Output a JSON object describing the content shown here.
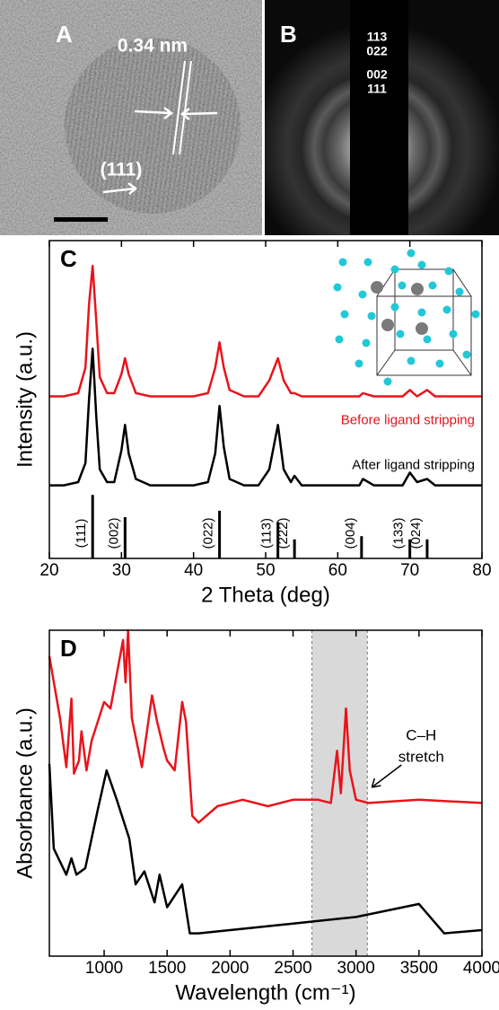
{
  "image_panels": [
    {
      "label": "A",
      "annotations": [
        "0.34 nm",
        "(111)"
      ]
    },
    {
      "label": "B",
      "annotations": [
        "113",
        "022",
        "002",
        "111"
      ]
    }
  ],
  "chart_data": [
    {
      "type": "line",
      "label": "C",
      "x_label": "2 Theta (deg)",
      "y_label": "Intensity (a.u.)",
      "xlim": [
        20,
        80
      ],
      "xticks": [
        20,
        30,
        40,
        50,
        60,
        70,
        80
      ],
      "ylim": [
        0,
        100
      ],
      "series": [
        {
          "name": "Before ligand stripping",
          "color": "#e8141c",
          "x": [
            20,
            22,
            24,
            25,
            25.5,
            26,
            26.5,
            27,
            28,
            29,
            30,
            30.5,
            31,
            32,
            34,
            36,
            38,
            40,
            42,
            43,
            43.6,
            44.2,
            45,
            47,
            49,
            50.5,
            51.7,
            52.5,
            53.5,
            54,
            55,
            57,
            59,
            61,
            63,
            63.5,
            65,
            67,
            69,
            70,
            71,
            72.4,
            73.5,
            75,
            77,
            80
          ],
          "values": [
            51,
            51,
            52,
            60,
            80,
            92,
            75,
            57,
            52,
            52,
            58,
            63,
            58,
            52,
            51,
            51,
            51,
            51,
            52,
            60,
            68,
            60,
            53,
            51,
            51,
            56,
            63,
            56,
            52,
            52,
            51,
            51,
            51,
            51,
            51,
            52,
            51,
            51,
            51,
            53,
            51,
            53,
            51,
            51,
            51,
            51
          ]
        },
        {
          "name": "After ligand stripping",
          "color": "#000000",
          "x": [
            20,
            22,
            24,
            25,
            25.5,
            26,
            26.5,
            27,
            28,
            29,
            30,
            30.5,
            31,
            32,
            34,
            36,
            38,
            40,
            42,
            43,
            43.6,
            44.2,
            45,
            47,
            49,
            50.5,
            51.7,
            52.5,
            53.5,
            54,
            55,
            57,
            59,
            61,
            63,
            63.5,
            65,
            67,
            69,
            70,
            71,
            72.4,
            73.5,
            75,
            77,
            80
          ],
          "values": [
            23,
            23,
            24,
            30,
            50,
            66,
            45,
            28,
            24,
            24,
            34,
            42,
            33,
            25,
            23,
            23,
            23,
            23,
            24,
            33,
            48,
            35,
            25,
            23,
            23,
            28,
            42,
            28,
            24,
            26,
            23,
            23,
            23,
            23,
            23,
            25,
            23,
            23,
            23,
            27,
            24,
            25,
            23,
            23,
            23,
            23
          ]
        }
      ],
      "reference_peaks": {
        "labels": [
          "(111)",
          "(002)",
          "(022)",
          "(113)",
          "(222)",
          "(004)",
          "(133)",
          "(024)"
        ],
        "x": [
          26.0,
          30.5,
          43.6,
          51.7,
          54.0,
          63.3,
          70.0,
          72.4
        ],
        "values": [
          20,
          13,
          15,
          11.5,
          6,
          7,
          6,
          6
        ],
        "color": "#000000"
      }
    },
    {
      "type": "line",
      "label": "D",
      "x_label": "Wavelength (cm⁻¹)",
      "y_label": "Absorbance (a.u.)",
      "xlim": [
        565,
        4000
      ],
      "xticks": [
        1000,
        1500,
        2000,
        2500,
        3000,
        3500,
        4000
      ],
      "ylim": [
        0,
        100
      ],
      "highlight": [
        2650,
        3090
      ],
      "annotation_lines": [
        "C–H",
        "stretch"
      ],
      "series": [
        {
          "name": null,
          "color": "#e8141c",
          "x": [
            565,
            650,
            700,
            740,
            760,
            800,
            820,
            860,
            900,
            1000,
            1050,
            1150,
            1170,
            1190,
            1220,
            1300,
            1380,
            1420,
            1470,
            1500,
            1560,
            1620,
            1650,
            1700,
            1750,
            1900,
            2100,
            2300,
            2500,
            2700,
            2800,
            2850,
            2880,
            2920,
            2950,
            3000,
            3100,
            3500,
            4000
          ],
          "values": [
            92,
            73,
            58,
            79,
            56,
            60,
            69,
            57,
            66,
            78,
            76,
            97,
            84,
            100,
            73,
            58,
            80,
            72,
            64,
            60,
            57,
            78,
            72,
            43,
            41,
            46,
            48,
            46,
            48,
            48,
            47,
            63,
            50,
            76,
            57,
            48,
            47,
            48,
            47
          ]
        },
        {
          "name": null,
          "color": "#000000",
          "x": [
            565,
            600,
            700,
            740,
            780,
            850,
            950,
            1020,
            1100,
            1200,
            1250,
            1320,
            1400,
            1440,
            1500,
            1620,
            1680,
            1750,
            2000,
            2500,
            3000,
            3500,
            3700,
            4000
          ],
          "values": [
            59,
            33,
            25,
            30,
            25,
            27,
            45,
            57,
            48,
            36,
            22,
            26,
            16.5,
            25,
            15,
            22,
            7,
            7,
            8,
            10,
            12,
            16,
            7,
            8
          ]
        }
      ]
    }
  ]
}
